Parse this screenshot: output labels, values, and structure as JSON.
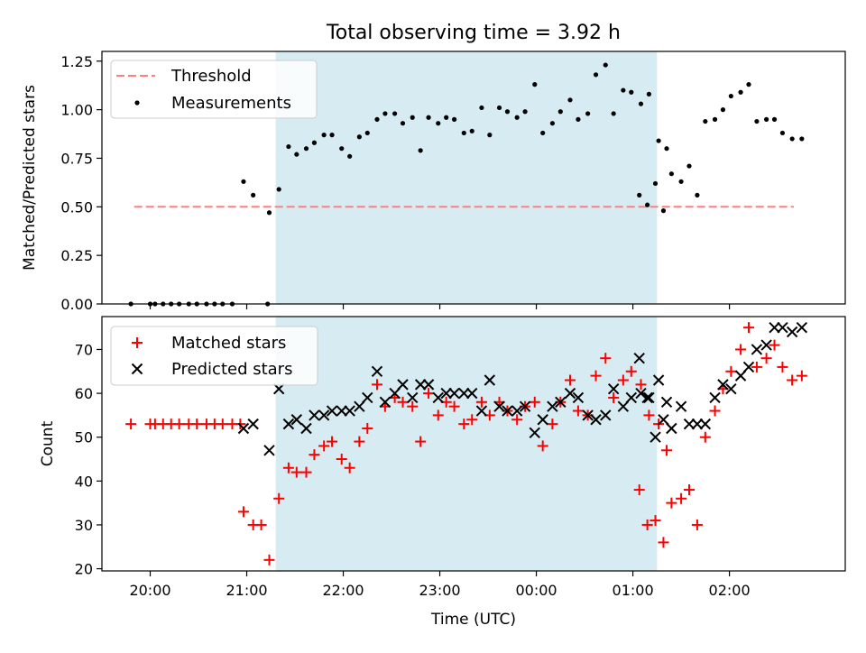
{
  "chart_data": [
    {
      "type": "scatter",
      "title": "Total observing time = 3.92 h",
      "ylabel": "Matched/Predicted stars",
      "xlabel": "",
      "ylim": [
        0,
        1.3
      ],
      "yticks": [
        "0.00",
        "0.25",
        "0.50",
        "0.75",
        "1.00",
        "1.25"
      ],
      "xlim": [
        "19:30",
        "03:12"
      ],
      "shaded_interval": [
        "21:18",
        "01:15"
      ],
      "shade_color": "#add8e6",
      "legend_placement": "top-left",
      "threshold": {
        "name": "Threshold",
        "value": 0.5,
        "from": "19:50",
        "to": "02:40",
        "color": "#ff7f7f",
        "style": "dashed"
      },
      "series": [
        {
          "name": "Measurements",
          "color": "#000000",
          "points": [
            [
              "19:48",
              0.0
            ],
            [
              "20:00",
              0.0
            ],
            [
              "20:03",
              0.0
            ],
            [
              "20:08",
              0.0
            ],
            [
              "20:13",
              0.0
            ],
            [
              "20:18",
              0.0
            ],
            [
              "20:24",
              0.0
            ],
            [
              "20:29",
              0.0
            ],
            [
              "20:35",
              0.0
            ],
            [
              "20:40",
              0.0
            ],
            [
              "20:45",
              0.0
            ],
            [
              "20:51",
              0.0
            ],
            [
              "21:13",
              0.0
            ],
            [
              "20:58",
              0.63
            ],
            [
              "21:04",
              0.56
            ],
            [
              "21:14",
              0.47
            ],
            [
              "21:20",
              0.59
            ],
            [
              "21:26",
              0.81
            ],
            [
              "21:31",
              0.77
            ],
            [
              "21:37",
              0.8
            ],
            [
              "21:42",
              0.83
            ],
            [
              "21:48",
              0.87
            ],
            [
              "21:53",
              0.87
            ],
            [
              "21:59",
              0.8
            ],
            [
              "22:04",
              0.76
            ],
            [
              "22:10",
              0.86
            ],
            [
              "22:15",
              0.88
            ],
            [
              "22:21",
              0.95
            ],
            [
              "22:26",
              0.98
            ],
            [
              "22:32",
              0.98
            ],
            [
              "22:37",
              0.93
            ],
            [
              "22:43",
              0.96
            ],
            [
              "22:48",
              0.79
            ],
            [
              "22:53",
              0.96
            ],
            [
              "22:59",
              0.93
            ],
            [
              "23:04",
              0.96
            ],
            [
              "23:09",
              0.95
            ],
            [
              "23:15",
              0.88
            ],
            [
              "23:20",
              0.89
            ],
            [
              "23:26",
              1.01
            ],
            [
              "23:31",
              0.87
            ],
            [
              "23:37",
              1.01
            ],
            [
              "23:42",
              0.99
            ],
            [
              "23:48",
              0.96
            ],
            [
              "23:53",
              0.99
            ],
            [
              "23:59",
              1.13
            ],
            [
              "00:04",
              0.88
            ],
            [
              "00:10",
              0.93
            ],
            [
              "00:15",
              0.99
            ],
            [
              "00:21",
              1.05
            ],
            [
              "00:26",
              0.95
            ],
            [
              "00:32",
              0.98
            ],
            [
              "00:37",
              1.18
            ],
            [
              "00:43",
              1.23
            ],
            [
              "00:48",
              0.98
            ],
            [
              "00:54",
              1.1
            ],
            [
              "00:59",
              1.09
            ],
            [
              "01:05",
              1.03
            ],
            [
              "01:10",
              1.08
            ],
            [
              "01:16",
              0.84
            ],
            [
              "01:21",
              0.8
            ],
            [
              "01:04",
              0.56
            ],
            [
              "01:09",
              0.51
            ],
            [
              "01:14",
              0.62
            ],
            [
              "01:19",
              0.48
            ],
            [
              "01:24",
              0.67
            ],
            [
              "01:30",
              0.63
            ],
            [
              "01:35",
              0.71
            ],
            [
              "01:40",
              0.56
            ],
            [
              "01:45",
              0.94
            ],
            [
              "01:51",
              0.95
            ],
            [
              "01:56",
              1.0
            ],
            [
              "02:01",
              1.07
            ],
            [
              "02:07",
              1.09
            ],
            [
              "02:12",
              1.13
            ],
            [
              "02:17",
              0.94
            ],
            [
              "02:23",
              0.95
            ],
            [
              "02:28",
              0.95
            ],
            [
              "02:33",
              0.88
            ],
            [
              "02:39",
              0.85
            ],
            [
              "02:45",
              0.85
            ]
          ]
        }
      ]
    },
    {
      "type": "scatter",
      "title": "",
      "xlabel": "Time (UTC)",
      "ylabel": "Count",
      "ylim": [
        19.5,
        77.5
      ],
      "yticks": [
        "20",
        "30",
        "40",
        "50",
        "60",
        "70"
      ],
      "xticks": [
        "20:00",
        "21:00",
        "22:00",
        "23:00",
        "00:00",
        "01:00",
        "02:00"
      ],
      "xlim": [
        "19:30",
        "03:12"
      ],
      "shaded_interval": [
        "21:18",
        "01:15"
      ],
      "shade_color": "#add8e6",
      "legend_placement": "top-left",
      "series": [
        {
          "name": "Matched stars",
          "marker": "plus",
          "color": "#ff0000",
          "points": [
            [
              "19:48",
              53
            ],
            [
              "20:00",
              53
            ],
            [
              "20:03",
              53
            ],
            [
              "20:08",
              53
            ],
            [
              "20:13",
              53
            ],
            [
              "20:18",
              53
            ],
            [
              "20:24",
              53
            ],
            [
              "20:29",
              53
            ],
            [
              "20:35",
              53
            ],
            [
              "20:40",
              53
            ],
            [
              "20:45",
              53
            ],
            [
              "20:51",
              53
            ],
            [
              "20:56",
              53
            ],
            [
              "20:58",
              33
            ],
            [
              "21:04",
              30
            ],
            [
              "21:09",
              30
            ],
            [
              "21:14",
              22
            ],
            [
              "21:20",
              36
            ],
            [
              "21:26",
              43
            ],
            [
              "21:31",
              42
            ],
            [
              "21:37",
              42
            ],
            [
              "21:42",
              46
            ],
            [
              "21:48",
              48
            ],
            [
              "21:53",
              49
            ],
            [
              "21:59",
              45
            ],
            [
              "22:04",
              43
            ],
            [
              "22:10",
              49
            ],
            [
              "22:15",
              52
            ],
            [
              "22:21",
              62
            ],
            [
              "22:26",
              57
            ],
            [
              "22:32",
              59
            ],
            [
              "22:37",
              58
            ],
            [
              "22:43",
              57
            ],
            [
              "22:48",
              49
            ],
            [
              "22:53",
              60
            ],
            [
              "22:59",
              55
            ],
            [
              "23:04",
              58
            ],
            [
              "23:09",
              57
            ],
            [
              "23:15",
              53
            ],
            [
              "23:20",
              54
            ],
            [
              "23:26",
              58
            ],
            [
              "23:31",
              55
            ],
            [
              "23:37",
              58
            ],
            [
              "23:42",
              56
            ],
            [
              "23:48",
              54
            ],
            [
              "23:53",
              57
            ],
            [
              "23:59",
              58
            ],
            [
              "00:04",
              48
            ],
            [
              "00:10",
              53
            ],
            [
              "00:15",
              58
            ],
            [
              "00:21",
              63
            ],
            [
              "00:26",
              56
            ],
            [
              "00:32",
              55
            ],
            [
              "00:37",
              64
            ],
            [
              "00:43",
              68
            ],
            [
              "00:48",
              59
            ],
            [
              "00:54",
              63
            ],
            [
              "00:59",
              65
            ],
            [
              "01:05",
              62
            ],
            [
              "01:10",
              55
            ],
            [
              "01:16",
              53
            ],
            [
              "01:21",
              47
            ],
            [
              "01:04",
              38
            ],
            [
              "01:09",
              30
            ],
            [
              "01:14",
              31
            ],
            [
              "01:19",
              26
            ],
            [
              "01:24",
              35
            ],
            [
              "01:30",
              36
            ],
            [
              "01:35",
              38
            ],
            [
              "01:40",
              30
            ],
            [
              "01:45",
              50
            ],
            [
              "01:51",
              56
            ],
            [
              "01:56",
              61
            ],
            [
              "02:01",
              65
            ],
            [
              "02:07",
              70
            ],
            [
              "02:12",
              75
            ],
            [
              "02:17",
              66
            ],
            [
              "02:23",
              68
            ],
            [
              "02:28",
              71
            ],
            [
              "02:33",
              66
            ],
            [
              "02:39",
              63
            ],
            [
              "02:45",
              64
            ]
          ]
        },
        {
          "name": "Predicted stars",
          "marker": "x",
          "color": "#000000",
          "points": [
            [
              "20:58",
              52
            ],
            [
              "21:04",
              53
            ],
            [
              "21:14",
              47
            ],
            [
              "21:20",
              61
            ],
            [
              "21:26",
              53
            ],
            [
              "21:31",
              54
            ],
            [
              "21:37",
              52
            ],
            [
              "21:42",
              55
            ],
            [
              "21:48",
              55
            ],
            [
              "21:53",
              56
            ],
            [
              "21:59",
              56
            ],
            [
              "22:04",
              56
            ],
            [
              "22:10",
              57
            ],
            [
              "22:15",
              59
            ],
            [
              "22:21",
              65
            ],
            [
              "22:26",
              58
            ],
            [
              "22:32",
              60
            ],
            [
              "22:37",
              62
            ],
            [
              "22:43",
              59
            ],
            [
              "22:48",
              62
            ],
            [
              "22:53",
              62
            ],
            [
              "22:59",
              59
            ],
            [
              "23:04",
              60
            ],
            [
              "23:09",
              60
            ],
            [
              "23:15",
              60
            ],
            [
              "23:20",
              60
            ],
            [
              "23:26",
              56
            ],
            [
              "23:31",
              63
            ],
            [
              "23:37",
              57
            ],
            [
              "23:42",
              56
            ],
            [
              "23:48",
              56
            ],
            [
              "23:53",
              57
            ],
            [
              "23:59",
              51
            ],
            [
              "00:04",
              54
            ],
            [
              "00:10",
              57
            ],
            [
              "00:15",
              58
            ],
            [
              "00:21",
              60
            ],
            [
              "00:26",
              59
            ],
            [
              "00:32",
              55
            ],
            [
              "00:37",
              54
            ],
            [
              "00:43",
              55
            ],
            [
              "00:48",
              61
            ],
            [
              "00:54",
              57
            ],
            [
              "00:59",
              59
            ],
            [
              "01:05",
              60
            ],
            [
              "01:10",
              59
            ],
            [
              "01:16",
              63
            ],
            [
              "01:21",
              58
            ],
            [
              "01:04",
              68
            ],
            [
              "01:09",
              59
            ],
            [
              "01:14",
              50
            ],
            [
              "01:19",
              54
            ],
            [
              "01:24",
              52
            ],
            [
              "01:30",
              57
            ],
            [
              "01:35",
              53
            ],
            [
              "01:40",
              53
            ],
            [
              "01:45",
              53
            ],
            [
              "01:51",
              59
            ],
            [
              "01:56",
              62
            ],
            [
              "02:01",
              61
            ],
            [
              "02:07",
              64
            ],
            [
              "02:12",
              66
            ],
            [
              "02:17",
              70
            ],
            [
              "02:23",
              71
            ],
            [
              "02:28",
              75
            ],
            [
              "02:33",
              75
            ],
            [
              "02:39",
              74
            ],
            [
              "02:45",
              75
            ]
          ]
        }
      ]
    }
  ]
}
